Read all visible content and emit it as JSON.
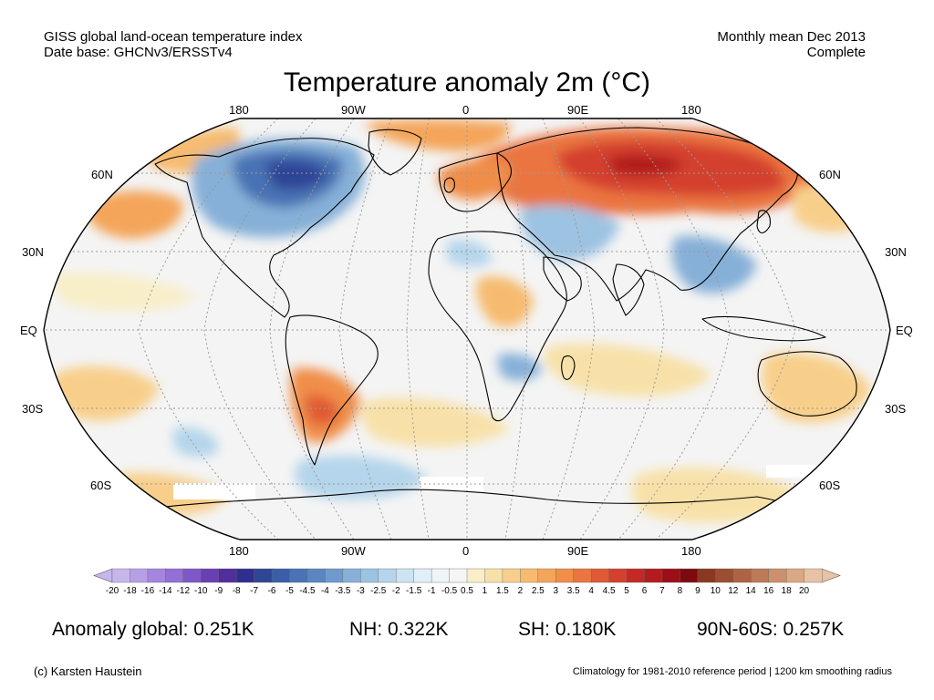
{
  "header": {
    "source_line1": "GISS global land-ocean temperature index",
    "source_line2": "Date base: GHCNv3/ERSSTv4",
    "period_line1": "Monthly mean Dec 2013",
    "period_line2": "Complete"
  },
  "title": "Temperature anomaly 2m (°C)",
  "map": {
    "projection": "Robinson (world)",
    "lon_labels_top": [
      "180",
      "90W",
      "0",
      "90E",
      "180"
    ],
    "lon_labels_bottom": [
      "180",
      "90W",
      "0",
      "90E",
      "180"
    ],
    "lat_labels_left": [
      "60N",
      "30N",
      "EQ",
      "30S",
      "60S"
    ],
    "lat_labels_right": [
      "60N",
      "30N",
      "EQ",
      "30S",
      "60S"
    ],
    "ocean_color": "#f4f4f4",
    "coastline_color": "#000000"
  },
  "colorbar": {
    "labels": [
      "-20",
      "-18",
      "-16",
      "-14",
      "-12",
      "-10",
      "-9",
      "-8",
      "-7",
      "-6",
      "-5",
      "-4.5",
      "-4",
      "-3.5",
      "-3",
      "-2.5",
      "-2",
      "-1.5",
      "-1",
      "-0.5",
      "0.5",
      "1",
      "1.5",
      "2",
      "2.5",
      "3",
      "3.5",
      "4",
      "4.5",
      "5",
      "6",
      "7",
      "8",
      "9",
      "10",
      "12",
      "14",
      "16",
      "18",
      "20"
    ],
    "colors": [
      "#c7b6ec",
      "#b79fe6",
      "#a585de",
      "#9270d4",
      "#7d58c6",
      "#6a3fb3",
      "#522d9d",
      "#2f2f8f",
      "#2f4596",
      "#3a5ea8",
      "#4a72b4",
      "#5a86c0",
      "#6e9bcc",
      "#86b0d8",
      "#9dc3e2",
      "#b4d5eb",
      "#cde4f2",
      "#e0eff8",
      "#eef5fa",
      "#f5f5f5",
      "#f8eec8",
      "#f8e1a8",
      "#f8cf8a",
      "#f6bb70",
      "#f4a55a",
      "#f08e4a",
      "#ea7540",
      "#e05a36",
      "#d4402e",
      "#c42926",
      "#b21c1f",
      "#9c0f17",
      "#7e0a10",
      "#8a3820",
      "#9c4e30",
      "#ae6444",
      "#bd7a58",
      "#cc906c",
      "#dba884",
      "#e8c2a4"
    ]
  },
  "stats": {
    "global": "Anomaly global: 0.251K",
    "nh": "NH: 0.322K",
    "sh": "SH: 0.180K",
    "band": "90N-60S: 0.257K"
  },
  "footer": {
    "credit": "(c) Karsten Haustein",
    "note": "Climatology for 1981-2010 reference period | 1200 km smoothing radius"
  }
}
